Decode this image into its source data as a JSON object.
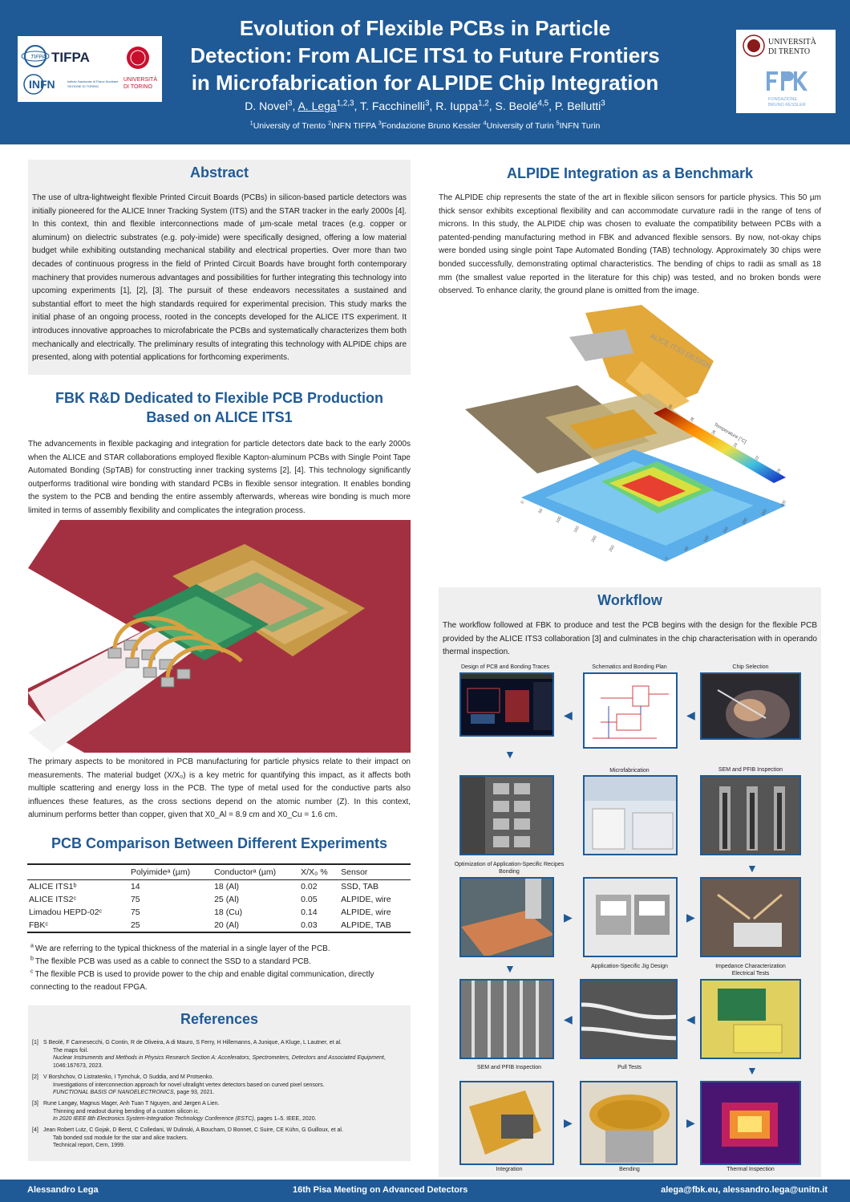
{
  "header": {
    "title_lines": [
      "Evolution of Flexible PCBs in Particle",
      "Detection: From ALICE ITS1 to Future Frontiers",
      "in Microfabrication for ALPIDE Chip Integration"
    ],
    "authors": [
      {
        "name": "D. Novel",
        "sup": "3"
      },
      {
        "name": "A. Lega",
        "sup": "1,2,3"
      },
      {
        "name": "T. Facchinelli",
        "sup": "3"
      },
      {
        "name": "R. Iuppa",
        "sup": "1,2"
      },
      {
        "name": "S. Beolé",
        "sup": "4,5"
      },
      {
        "name": "P. Bellutti",
        "sup": "3"
      }
    ],
    "affiliations": [
      {
        "sup": "1",
        "name": "University of Trento "
      },
      {
        "sup": "2",
        "name": "INFN TIFPA "
      },
      {
        "sup": "3",
        "name": "Fondazione Bruno Kessler "
      },
      {
        "sup": "4",
        "name": "University of Turin "
      },
      {
        "sup": "5",
        "name": "INFN Turin"
      }
    ],
    "logos_left": {
      "tifpa": "TIFPA",
      "infn": "INFN",
      "infn_sub": "Istituto Nazionale di Fisica Nucleare",
      "infn_sub2": "SEZIONE DI TORINO",
      "unito": "UNIVERSITÀ\nDI TORINO"
    },
    "logos_right": {
      "unitn": "UNIVERSITÀ\nDI TRENTO",
      "fbk": "FBK",
      "fbk_sub": "FONDAZIONE\nBRUNO KESSLER"
    }
  },
  "abstract": {
    "title": "Abstract",
    "text": "The use of ultra-lightweight flexible Printed Circuit Boards (PCBs) in silicon-based particle detectors was initially pioneered for the ALICE Inner Tracking System (ITS) and the STAR tracker in the early 2000s [4]. In this context, thin and flexible interconnections made of µm-scale metal traces (e.g. copper or aluminum) on dielectric substrates (e.g. poly-imide) were specifically designed, offering a low material budget while exhibiting outstanding mechanical stability and electrical properties. Over more than two decades of continuous progress in the field of Printed Circuit Boards have brought forth contemporary machinery that provides numerous advantages and possibilities for further integrating this technology into upcoming experiments [1], [2], [3]. The pursuit of these endeavors necessitates a sustained and substantial effort to meet the high standards required for experimental precision. This study marks the initial phase of an ongoing process, rooted in the concepts developed for the ALICE ITS experiment. It introduces innovative approaches to microfabricate the PCBs and systematically characterizes them both mechanically and electrically. The preliminary results of integrating this technology with ALPIDE chips are presented, along with potential applications for forthcoming experiments."
  },
  "fbk_rd": {
    "title_line1": "FBK R&D Dedicated to Flexible PCB Production",
    "title_line2": "Based on ALICE ITS1",
    "text1": "The advancements in flexible packaging and integration for particle detectors date back to the early 2000s when the ALICE and STAR collaborations employed flexible Kapton-aluminum PCBs with Single Point Tape Automated Bonding (SpTAB) for constructing inner tracking systems [2], [4]. This technology significantly outperforms traditional wire bonding with standard PCBs in flexible sensor integration. It enables bonding the system to the PCB and bending the entire assembly afterwards, whereas wire bonding is much more limited in terms of assembly flexibility and complicates the integration process.",
    "text2": "The primary aspects to be monitored in PCB manufacturing for particle physics relate to their impact on measurements. The material budget (X/X₀) is a key metric for quantifying this impact, as it affects both multiple scattering and energy loss in the PCB. The type of metal used for the conductive parts also influences these features, as the cross sections depend on the atomic number (Z). In this context, aluminum performs better than copper, given that X0_Al = 8.9 cm and X0_Cu = 1.6 cm."
  },
  "comparison": {
    "title": "PCB Comparison Between Different Experiments",
    "headers": [
      "",
      "Polyimideᵃ (µm)",
      "Conductorᵃ (µm)",
      "X/X₀ %",
      "Sensor"
    ],
    "rows": [
      [
        "ALICE ITS1ᵇ",
        "14",
        "18 (Al)",
        "0.02",
        "SSD, TAB"
      ],
      [
        "ALICE ITS2ᶜ",
        "75",
        "25 (Al)",
        "0.05",
        "ALPIDE, wire"
      ],
      [
        "Limadou HEPD-02ᶜ",
        "75",
        "18 (Cu)",
        "0.14",
        "ALPIDE, wire"
      ],
      [
        "FBKᶜ",
        "25",
        "20 (Al)",
        "0.03",
        "ALPIDE, TAB"
      ]
    ],
    "notes": [
      {
        "mark": "a",
        "text": "We are referring to the typical thickness of the material in a single layer of the PCB."
      },
      {
        "mark": "b",
        "text": "The flexible PCB was used as a cable to connect the SSD to a standard PCB."
      },
      {
        "mark": "c",
        "text": "The flexible PCB is used to provide power to the chip and enable digital communication, directly connecting to the readout FPGA."
      }
    ]
  },
  "references": {
    "title": "References",
    "items": [
      {
        "n": "[1]",
        "authors": "S Beolé, F Carnesecchi, G Contin, R de Oliveira, A di Mauro, S Ferry, H Hillemanns, A Junique, A Kluge, L Lautner, et al.",
        "title": "The maps foil.",
        "venue": "Nuclear Instruments and Methods in Physics Research Section A: Accelerators, Spectrometers, Detectors and Associated Equipment",
        "tail": ", 1046:167673, 2023."
      },
      {
        "n": "[2]",
        "authors": "V Borshchov, O Listratenko, I Tymchuk, O Suddia, and M Protsenko.",
        "title": "Investigations of interconnection approach for novel ultralight vertex detectors based on curved pixel sensors.",
        "venue": "FUNCTIONAL BASIS OF NANOELECTRONICS",
        "tail": ", page 93, 2021."
      },
      {
        "n": "[3]",
        "authors": "Rune Langøy, Magnus Mager, Anh Tuan T Nguyen, and Jørgen A Lien.",
        "title": "Thinning and readout during bending of a custom silicon ic.",
        "venue": "In 2020 IEEE 8th Electronics System-Integration Technology Conference (ESTC)",
        "tail": ", pages 1–5. IEEE, 2020."
      },
      {
        "n": "[4]",
        "authors": "Jean Robert Lutz, C Gojak, D Berst, C Colledani, W Dulinski, A Boucham, D Bonnet, C Suire, CE Kühn, G Guilloux, et al.",
        "title": "Tab bonded ssd module for the star and alice trackers.",
        "venue": "",
        "tail": "Technical report, Cern, 1999."
      }
    ]
  },
  "alpide": {
    "title": "ALPIDE Integration as a Benchmark",
    "text": "The ALPIDE chip represents the state of the art in flexible silicon sensors for particle physics. This 50 µm thick sensor exhibits exceptional flexibility and can accommodate curvature radii in the range of tens of microns. In this study, the ALPIDE chip was chosen to evaluate the compatibility between PCBs with a patented-pending manufacturing method in FBK and advanced flexible sensors. By now, not-okay chips were bonded using single point Tape Automated Bonding (TAB) technology. Approximately 30 chips were bonded successfully, demonstrating optimal characteristics. The bending of chips to radii as small as 18 mm (the smallest value reported in the literature for this chip) was tested, and no broken bonds were observed. To enhance clarity, the ground plane is omitted from the image.",
    "figure_label": "ALICE ITS3 DESIGN",
    "colorbar_label": "Temperature [°C]",
    "colorbar_ticks": [
      "30",
      "28",
      "26",
      "24",
      "22",
      "20"
    ],
    "axis_ticks_a": [
      "0",
      "50",
      "100",
      "150",
      "200",
      "250"
    ],
    "axis_ticks_b": [
      "0",
      "50",
      "100",
      "150",
      "200",
      "250",
      "300"
    ],
    "axis_label_x": "x",
    "axis_label_y": "y"
  },
  "workflow": {
    "title": "Workflow",
    "text": "The workflow followed at FBK to produce and test the PCB begins with the design for the flexible PCB provided by the ALICE ITS3 collaboration [3] and culminates in the chip characterisation with in operando thermal inspection.",
    "captions": {
      "design": "Design of PCB and Bonding Traces",
      "schematics": "Schematics and Bonding Plan",
      "chip_sel": "Chip Selection",
      "microfab": "Microfabrication",
      "sem1": "SEM and PFIB Inspection",
      "optim": "Optimization of Application-Specific Recipes",
      "bonding": "Bonding",
      "jig": "Application-Specific Jig Design",
      "impedance": "Impedance Characterization",
      "electrical": "Electrical Tests",
      "sem2": "SEM and PFIB Inspection",
      "pull": "Pull Tests",
      "integration": "Integration",
      "bending": "Bending",
      "thermal": "Thermal Inspection"
    }
  },
  "footer": {
    "left": "Alessandro Lega",
    "center": "16th Pisa Meeting on Advanced Detectors",
    "right": "alega@fbk.eu, alessandro.lega@unitn.it"
  },
  "colors": {
    "brand_blue": "#1f5a96",
    "panel_grey": "#efefef",
    "pcb_red": "#a33040",
    "gold": "#d9a03a"
  }
}
